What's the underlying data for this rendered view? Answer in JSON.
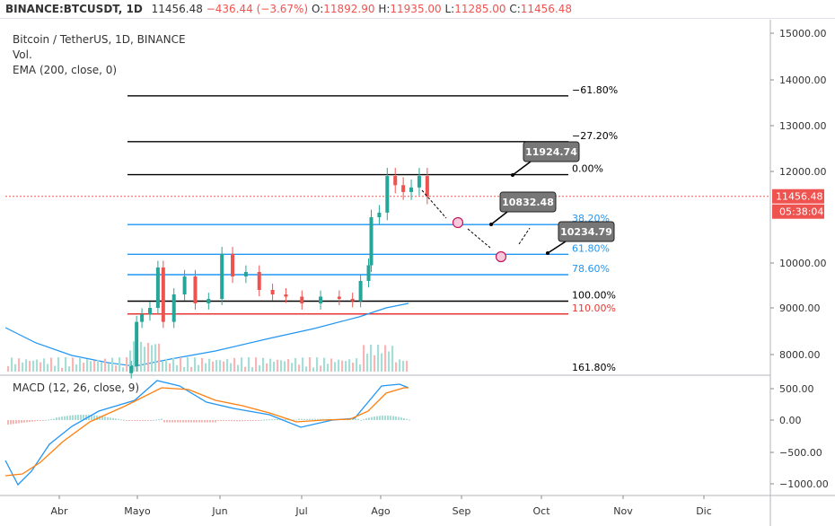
{
  "header": {
    "symbol": "BINANCE:BTCUSDT, 1D",
    "last": "11456.48",
    "change": "−436.44 (−3.67%)",
    "open_label": "O:",
    "open": "11892.90",
    "high_label": "H:",
    "high": "11935.00",
    "low_label": "L:",
    "low": "11285.00",
    "close_label": "C:",
    "close": "11456.48"
  },
  "legend": {
    "title": "Bitcoin / TetherUS, 1D, BINANCE",
    "vol": "Vol.",
    "ema": "EMA (200, close, 0)",
    "macd": "MACD (12, 26, close, 9)"
  },
  "price_axis": {
    "ticks": [
      "15000.00",
      "14000.00",
      "13000.00",
      "12000.00",
      "10000.00",
      "9000.00",
      "8000.00"
    ],
    "last_tag": "11456.48",
    "timer_tag": "05:38:04"
  },
  "macd_axis": {
    "ticks": [
      "500.00",
      "0.00",
      "−500.00",
      "−1000.00"
    ]
  },
  "time_axis": {
    "ticks": [
      "Abr",
      "Mayo",
      "Jun",
      "Jul",
      "Ago",
      "Sep",
      "Oct",
      "Nov",
      "Dic"
    ]
  },
  "fib_levels": [
    {
      "label": "−61.80%",
      "price": 13650,
      "color": "#000000"
    },
    {
      "label": "−27.20%",
      "price": 12650,
      "color": "#000000"
    },
    {
      "label": "0.00%",
      "price": 11930,
      "color": "#000000"
    },
    {
      "label": "38.20%",
      "price": 10840,
      "color": "#2196f3"
    },
    {
      "label": "61.80%",
      "price": 10190,
      "color": "#2196f3"
    },
    {
      "label": "78.60%",
      "price": 9740,
      "color": "#2196f3"
    },
    {
      "label": "100.00%",
      "price": 9150,
      "color": "#000000"
    },
    {
      "label": "110.00%",
      "price": 8870,
      "color": "#e53935"
    },
    {
      "label": "161.80%",
      "price": 7450,
      "color": "#000000"
    }
  ],
  "callouts": [
    {
      "label": "11924.74"
    },
    {
      "label": "10832.48"
    },
    {
      "label": "10234.79"
    }
  ],
  "colors": {
    "up": "#26a69a",
    "down": "#ef5350",
    "ema": "#2196f3",
    "macd": "#2196f3",
    "signal": "#ff7f0e",
    "last_tag": "#ef5350",
    "timer_tag": "#ef5350"
  },
  "chart_data": {
    "type": "candlestick",
    "title": "Bitcoin / TetherUS, 1D, BINANCE",
    "x_range": [
      "Abr",
      "Dic"
    ],
    "ylim": [
      7700,
      15200
    ],
    "y_scale": "log",
    "grid": true,
    "series": [
      {
        "name": "BTCUSDT",
        "points": [
          {
            "x": "2020-04-28",
            "close": 7750
          },
          {
            "x": "2020-04-30",
            "close": 8700
          },
          {
            "x": "2020-05-02",
            "close": 8860
          },
          {
            "x": "2020-05-05",
            "close": 9000
          },
          {
            "x": "2020-05-08",
            "close": 9900
          },
          {
            "x": "2020-05-10",
            "close": 8700
          },
          {
            "x": "2020-05-14",
            "close": 9300
          },
          {
            "x": "2020-05-18",
            "close": 9700
          },
          {
            "x": "2020-05-22",
            "close": 9100
          },
          {
            "x": "2020-05-27",
            "close": 9200
          },
          {
            "x": "2020-06-01",
            "close": 10200
          },
          {
            "x": "2020-06-05",
            "close": 9700
          },
          {
            "x": "2020-06-10",
            "close": 9800
          },
          {
            "x": "2020-06-15",
            "close": 9400
          },
          {
            "x": "2020-06-20",
            "close": 9300
          },
          {
            "x": "2020-06-25",
            "close": 9250
          },
          {
            "x": "2020-07-01",
            "close": 9100
          },
          {
            "x": "2020-07-08",
            "close": 9250
          },
          {
            "x": "2020-07-15",
            "close": 9200
          },
          {
            "x": "2020-07-20",
            "close": 9150
          },
          {
            "x": "2020-07-23",
            "close": 9600
          },
          {
            "x": "2020-07-26",
            "close": 9950
          },
          {
            "x": "2020-07-27",
            "close": 11000
          },
          {
            "x": "2020-07-30",
            "close": 11100
          },
          {
            "x": "2020-08-02",
            "close": 11900
          },
          {
            "x": "2020-08-05",
            "close": 11700
          },
          {
            "x": "2020-08-08",
            "close": 11550
          },
          {
            "x": "2020-08-11",
            "close": 11650
          },
          {
            "x": "2020-08-14",
            "close": 11900
          },
          {
            "x": "2020-08-17",
            "close": 11456.48
          }
        ]
      }
    ],
    "macd": {
      "label": "MACD (12, 26, close, 9)",
      "ylim": [
        -1050,
        600
      ]
    }
  }
}
